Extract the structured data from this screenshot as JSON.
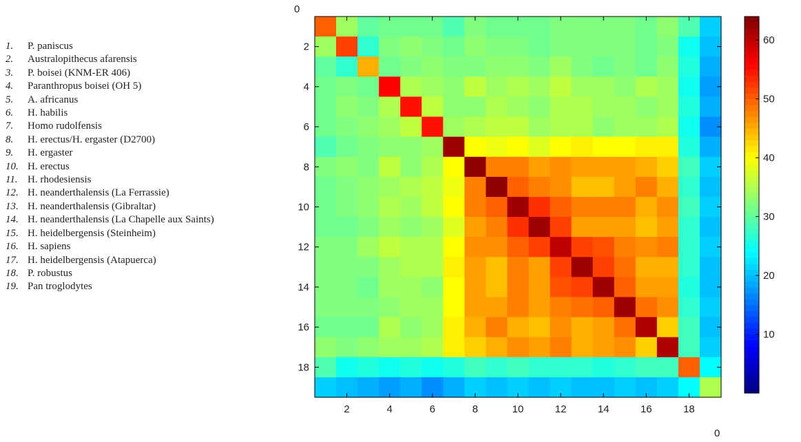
{
  "legend": {
    "items": [
      {
        "num": "1.",
        "label": "P. paniscus"
      },
      {
        "num": "2.",
        "label": "Australopithecus afarensis"
      },
      {
        "num": "3.",
        "label": "P. boisei (KNM-ER 406)"
      },
      {
        "num": "4.",
        "label": "Paranthropus boisei (OH 5)"
      },
      {
        "num": "5.",
        "label": "A. africanus"
      },
      {
        "num": "6.",
        "label": "H. habilis"
      },
      {
        "num": "7.",
        "label": "Homo rudolfensis"
      },
      {
        "num": "8.",
        "label": "H. erectus/H. ergaster (D2700)"
      },
      {
        "num": "9.",
        "label": "H. ergaster"
      },
      {
        "num": "10.",
        "label": "H. erectus"
      },
      {
        "num": "11.",
        "label": "H. rhodesiensis"
      },
      {
        "num": "12.",
        "label": "H. neanderthalensis (La Ferrassie)"
      },
      {
        "num": "13.",
        "label": "H. neanderthalensis (Gibraltar)"
      },
      {
        "num": "14.",
        "label": "H. neanderthalensis (La Chapelle aux Saints)"
      },
      {
        "num": "15.",
        "label": "H. heidelbergensis (Steinheim)"
      },
      {
        "num": "16.",
        "label": "H. sapiens"
      },
      {
        "num": "17.",
        "label": "H. heidelbergensis (Atapuerca)"
      },
      {
        "num": "18.",
        "label": "P. robustus"
      },
      {
        "num": "19.",
        "label": "Pan troglodytes"
      }
    ]
  },
  "chart_data": {
    "type": "heatmap",
    "n": 19,
    "x_ticks": [
      2,
      4,
      6,
      8,
      10,
      12,
      14,
      16,
      18
    ],
    "y_ticks": [
      2,
      4,
      6,
      8,
      10,
      12,
      14,
      16,
      18
    ],
    "axis_corner_label_top": "0",
    "axis_corner_label_bottom": "0",
    "colorbar": {
      "ticks": [
        10,
        20,
        30,
        40,
        50,
        60
      ],
      "range": [
        0,
        64
      ]
    },
    "colormap": "jet",
    "values": [
      [
        50,
        34,
        30,
        31,
        31,
        31,
        29,
        32,
        31,
        31,
        31,
        32,
        32,
        32,
        32,
        31,
        33,
        29,
        21
      ],
      [
        34,
        52,
        27,
        32,
        33,
        32,
        31,
        33,
        32,
        32,
        31,
        32,
        32,
        32,
        32,
        31,
        32,
        25,
        20
      ],
      [
        30,
        27,
        45,
        31,
        32,
        33,
        32,
        32,
        33,
        33,
        32,
        34,
        32,
        31,
        32,
        31,
        33,
        26,
        19
      ],
      [
        31,
        32,
        31,
        56,
        35,
        34,
        33,
        36,
        34,
        35,
        34,
        36,
        34,
        34,
        33,
        35,
        34,
        25,
        18
      ],
      [
        31,
        33,
        32,
        35,
        55,
        36,
        33,
        33,
        35,
        34,
        33,
        35,
        35,
        34,
        34,
        33,
        34,
        26,
        19
      ],
      [
        31,
        32,
        33,
        34,
        36,
        55,
        34,
        35,
        36,
        36,
        34,
        35,
        35,
        33,
        34,
        34,
        35,
        25,
        17
      ],
      [
        29,
        31,
        32,
        33,
        33,
        34,
        62,
        40,
        39,
        40,
        38,
        40,
        41,
        40,
        40,
        41,
        41,
        26,
        19
      ],
      [
        32,
        33,
        32,
        36,
        33,
        35,
        40,
        63,
        48,
        48,
        46,
        47,
        46,
        46,
        46,
        45,
        43,
        28,
        21
      ],
      [
        31,
        32,
        33,
        34,
        35,
        36,
        39,
        48,
        63,
        50,
        48,
        47,
        44,
        44,
        46,
        48,
        45,
        27,
        20
      ],
      [
        31,
        32,
        33,
        35,
        34,
        36,
        40,
        48,
        50,
        62,
        53,
        50,
        48,
        48,
        48,
        45,
        47,
        28,
        21
      ],
      [
        31,
        31,
        32,
        34,
        33,
        34,
        38,
        46,
        48,
        53,
        62,
        52,
        46,
        46,
        46,
        44,
        46,
        27,
        20
      ],
      [
        32,
        32,
        34,
        36,
        35,
        35,
        40,
        47,
        47,
        50,
        52,
        60,
        52,
        51,
        48,
        47,
        48,
        27,
        21
      ],
      [
        32,
        32,
        32,
        34,
        35,
        35,
        41,
        46,
        44,
        48,
        46,
        52,
        62,
        52,
        49,
        45,
        45,
        27,
        20
      ],
      [
        32,
        32,
        31,
        34,
        34,
        33,
        40,
        46,
        44,
        48,
        46,
        51,
        52,
        62,
        50,
        46,
        46,
        26,
        20
      ],
      [
        32,
        32,
        32,
        33,
        34,
        34,
        40,
        46,
        46,
        48,
        46,
        48,
        49,
        50,
        62,
        49,
        47,
        27,
        21
      ],
      [
        31,
        31,
        31,
        35,
        33,
        34,
        41,
        45,
        48,
        45,
        44,
        47,
        45,
        46,
        49,
        61,
        43,
        28,
        20
      ],
      [
        33,
        32,
        33,
        34,
        34,
        35,
        41,
        43,
        45,
        47,
        46,
        48,
        45,
        46,
        47,
        43,
        61,
        28,
        21
      ],
      [
        29,
        25,
        26,
        25,
        26,
        25,
        26,
        28,
        27,
        28,
        27,
        27,
        27,
        26,
        27,
        28,
        28,
        50,
        24
      ],
      [
        21,
        20,
        19,
        18,
        19,
        17,
        19,
        21,
        20,
        21,
        20,
        21,
        20,
        20,
        21,
        20,
        21,
        24,
        35
      ]
    ]
  }
}
